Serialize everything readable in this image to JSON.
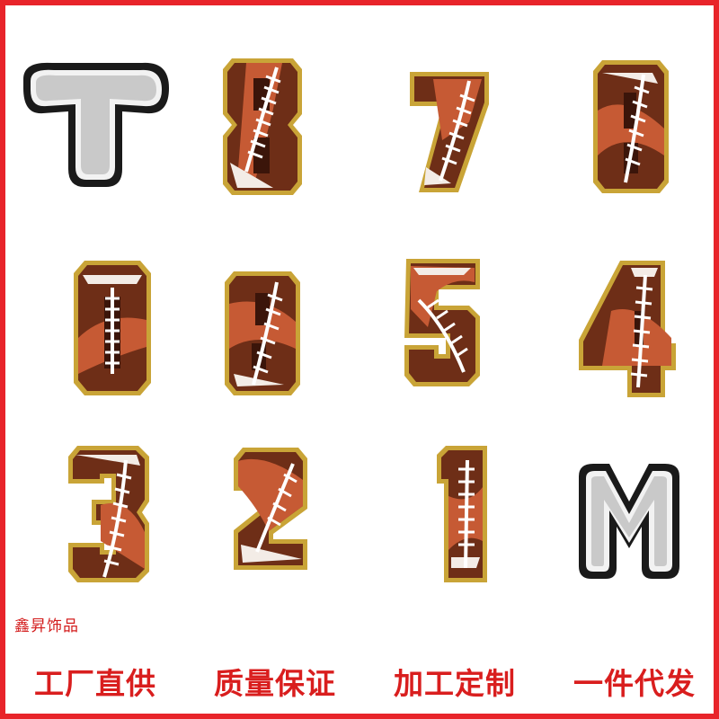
{
  "patches": [
    {
      "glyph": "T",
      "style": "silver"
    },
    {
      "glyph": "8",
      "style": "football"
    },
    {
      "glyph": "7",
      "style": "football"
    },
    {
      "glyph": "6",
      "style": "football"
    },
    {
      "glyph": "0",
      "style": "football"
    },
    {
      "glyph": "9",
      "style": "football"
    },
    {
      "glyph": "5",
      "style": "football"
    },
    {
      "glyph": "4",
      "style": "football"
    },
    {
      "glyph": "3",
      "style": "football"
    },
    {
      "glyph": "2",
      "style": "football"
    },
    {
      "glyph": "1",
      "style": "football"
    },
    {
      "glyph": "M",
      "style": "silver"
    }
  ],
  "shop_name": "鑫昇饰品",
  "slogans": [
    "工厂直供",
    "质量保证",
    "加工定制",
    "一件代发"
  ],
  "colors": {
    "border": "#e8242a",
    "slogan": "#d91e1e",
    "gold": "#c9a437",
    "brown_dark": "#6e2e17",
    "brown_mid": "#a9472a",
    "brown_light": "#c65a34",
    "silver": "#c9c9c9",
    "black_edge": "#1a1a1a"
  }
}
